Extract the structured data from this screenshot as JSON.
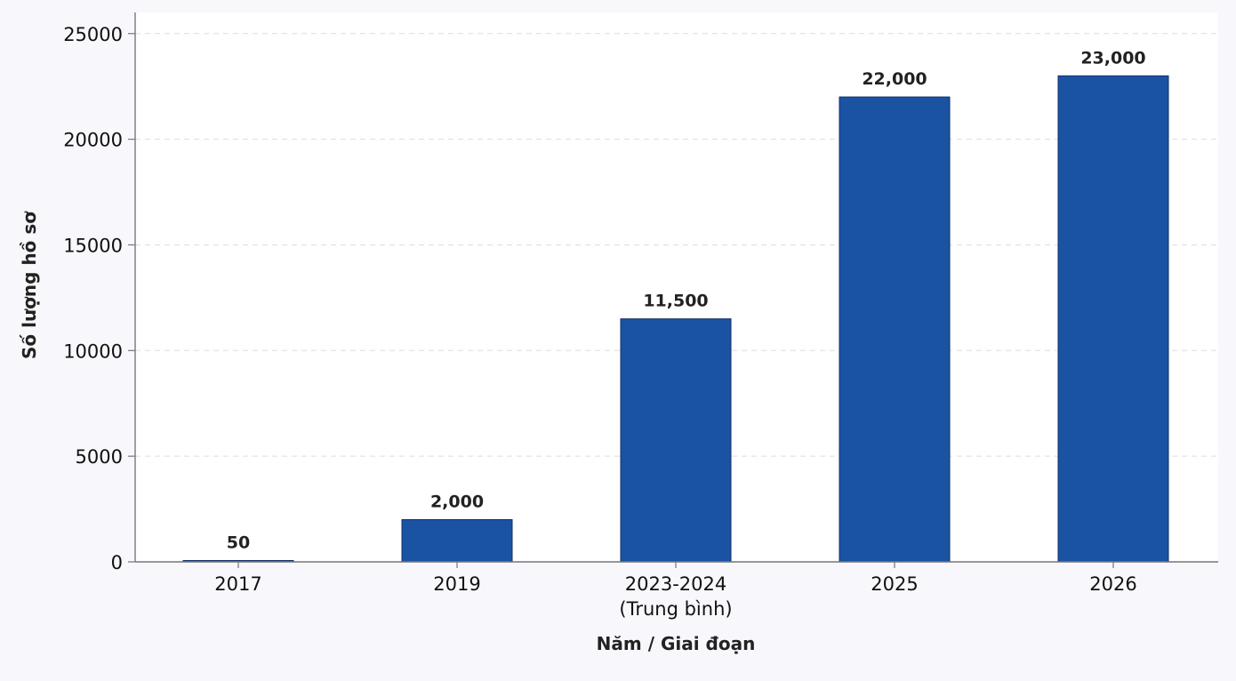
{
  "chart_data": {
    "type": "bar",
    "categories": [
      [
        "2017"
      ],
      [
        "2019"
      ],
      [
        "2023-2024",
        "(Trung bình)"
      ],
      [
        "2025"
      ],
      [
        "2026"
      ]
    ],
    "values": [
      50,
      2000,
      11500,
      22000,
      23000
    ],
    "value_labels": [
      "50",
      "2,000",
      "11,500",
      "22,000",
      "23,000"
    ],
    "xlabel": "Năm / Giai đoạn",
    "ylabel": "Số lượng hồ sơ",
    "ylim": [
      0,
      26000
    ],
    "yticks": [
      0,
      5000,
      10000,
      15000,
      20000,
      25000
    ],
    "ytick_labels": [
      "0",
      "5000",
      "10000",
      "15000",
      "20000",
      "25000"
    ],
    "grid": "horizontal-dashed",
    "colors": {
      "bar_fill": "#1b53a3",
      "bar_edge": "#0f2f6b",
      "plot_bg": "#ffffff",
      "page_bg": "#f8f8fc",
      "grid": "#dddddd",
      "axis": "#777777"
    }
  }
}
